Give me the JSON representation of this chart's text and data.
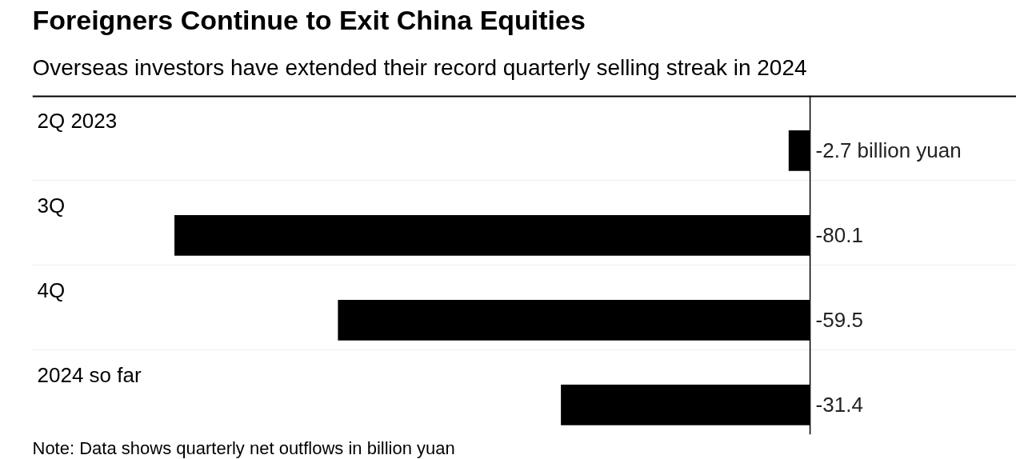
{
  "chart_data": {
    "type": "bar",
    "orientation": "horizontal",
    "title": "Foreigners Continue to Exit China Equities",
    "subtitle": "Overseas investors have extended their record quarterly selling streak in 2024",
    "categories": [
      "2Q 2023",
      "3Q",
      "4Q",
      "2024 so far"
    ],
    "values": [
      -2.7,
      -80.1,
      -59.5,
      -31.4
    ],
    "value_labels": [
      "-2.7 billion yuan",
      "-80.1",
      "-59.5",
      "-31.4"
    ],
    "color": "#000000",
    "xlim": [
      -98,
      26
    ],
    "ref_lines": [
      {
        "axis": "x",
        "value": 0,
        "color": "#000000"
      }
    ],
    "annotations": [
      "Note: Data shows quarterly net outflows in billion yuan"
    ]
  }
}
